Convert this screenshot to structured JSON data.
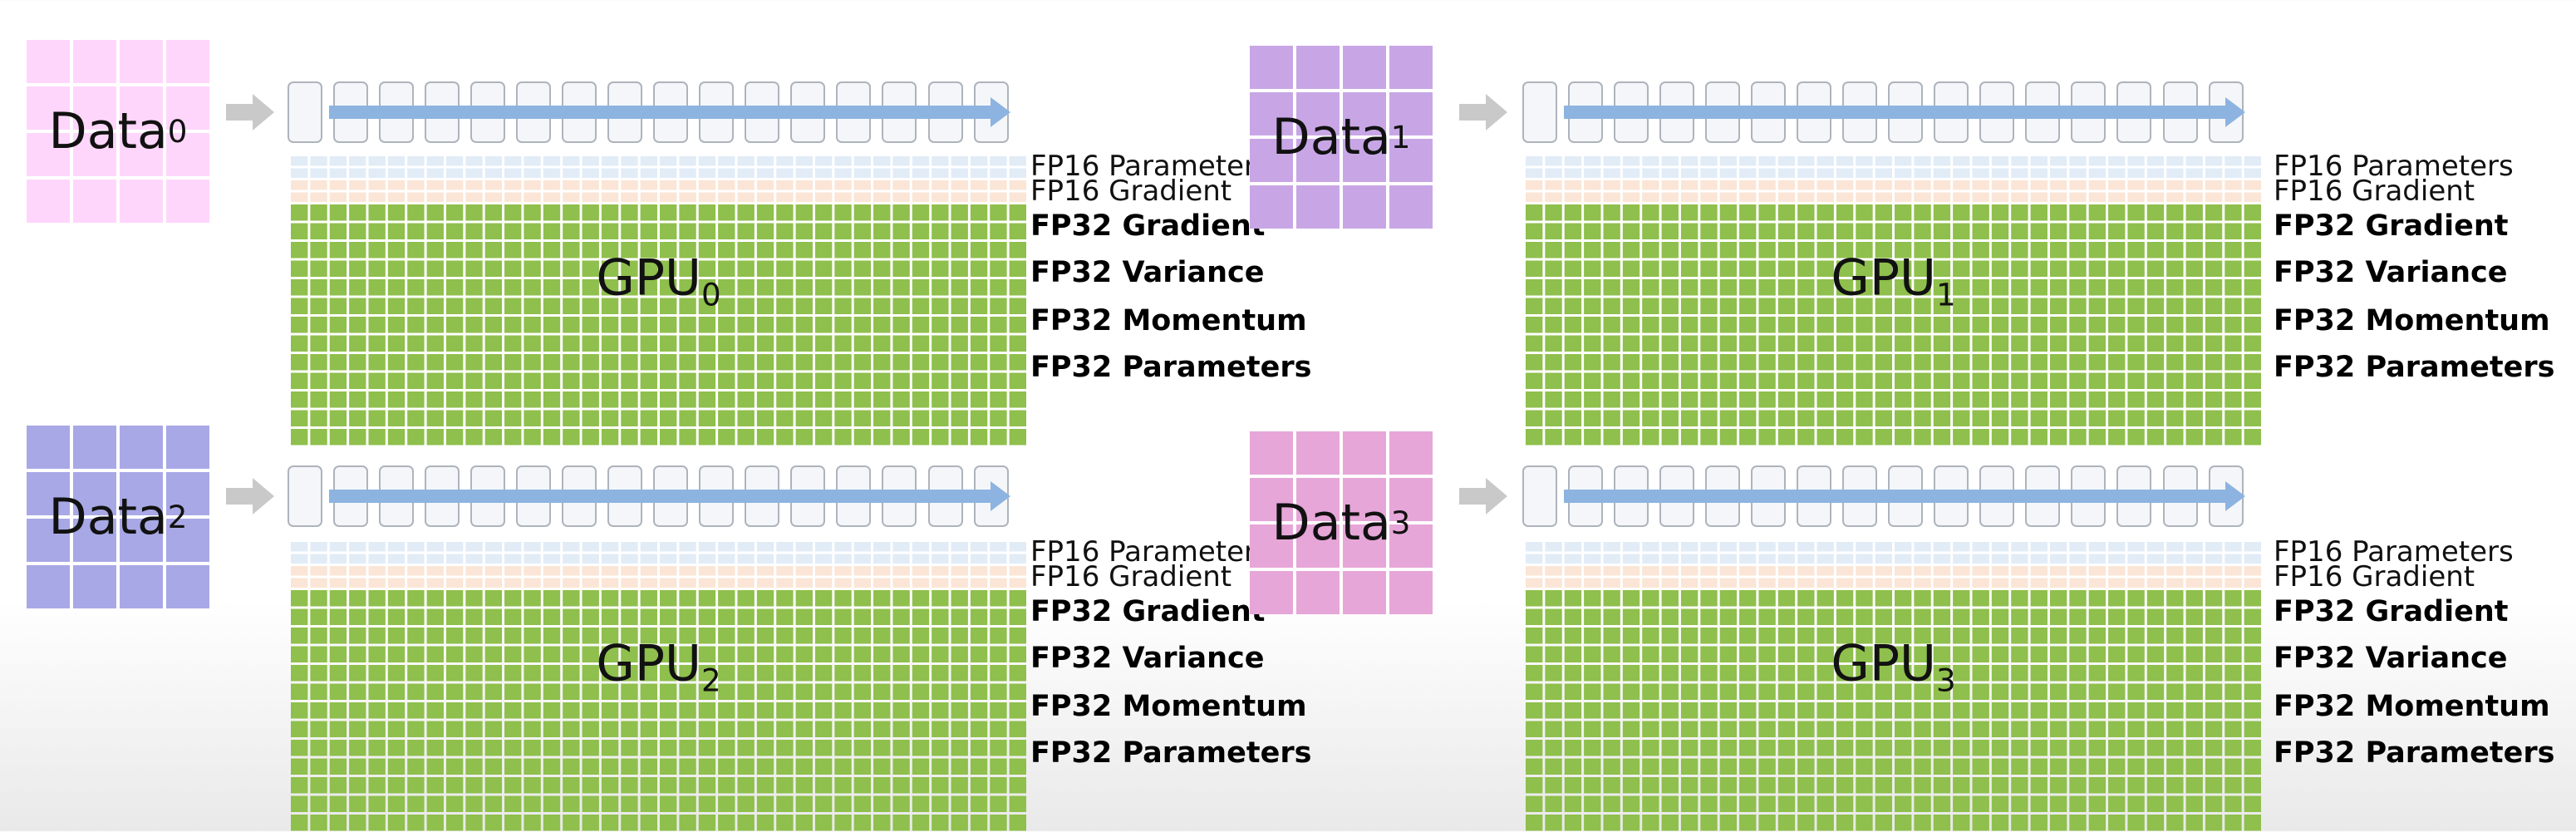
{
  "gpus": [
    {
      "data_label": "Data",
      "data_index": "0",
      "data_color": "#ffd6fb",
      "gpu_label": "GPU",
      "gpu_index": "0",
      "labels": [
        "FP16 Parameters",
        "FP16 Gradient",
        "FP32 Gradient",
        "FP32 Variance",
        "FP32 Momentum",
        "FP32 Parameters"
      ]
    },
    {
      "data_label": "Data",
      "data_index": "1",
      "data_color": "#c8a6e6",
      "gpu_label": "GPU",
      "gpu_index": "1",
      "labels": [
        "FP16 Parameters",
        "FP16 Gradient",
        "FP32 Gradient",
        "FP32 Variance",
        "FP32 Momentum",
        "FP32 Parameters"
      ]
    },
    {
      "data_label": "Data",
      "data_index": "2",
      "data_color": "#a8a8e6",
      "gpu_label": "GPU",
      "gpu_index": "2",
      "labels": [
        "FP16 Parameters",
        "FP16 Gradient",
        "FP32 Gradient",
        "FP32 Variance",
        "FP32 Momentum",
        "FP32 Parameters"
      ]
    },
    {
      "data_label": "Data",
      "data_index": "3",
      "data_color": "#e6a6d8",
      "gpu_label": "GPU",
      "gpu_index": "3",
      "labels": [
        "FP16 Parameters",
        "FP16 Gradient",
        "FP32 Gradient",
        "FP32 Variance",
        "FP32 Momentum",
        "FP32 Parameters"
      ]
    }
  ],
  "colors": {
    "fp16_parameters": "#e2ecf7",
    "fp16_gradient": "#fbe5d6",
    "fp32_states": "#8fbf4c",
    "flow_arrow": "#8db4e0",
    "input_arrow": "#c9c9c9"
  }
}
